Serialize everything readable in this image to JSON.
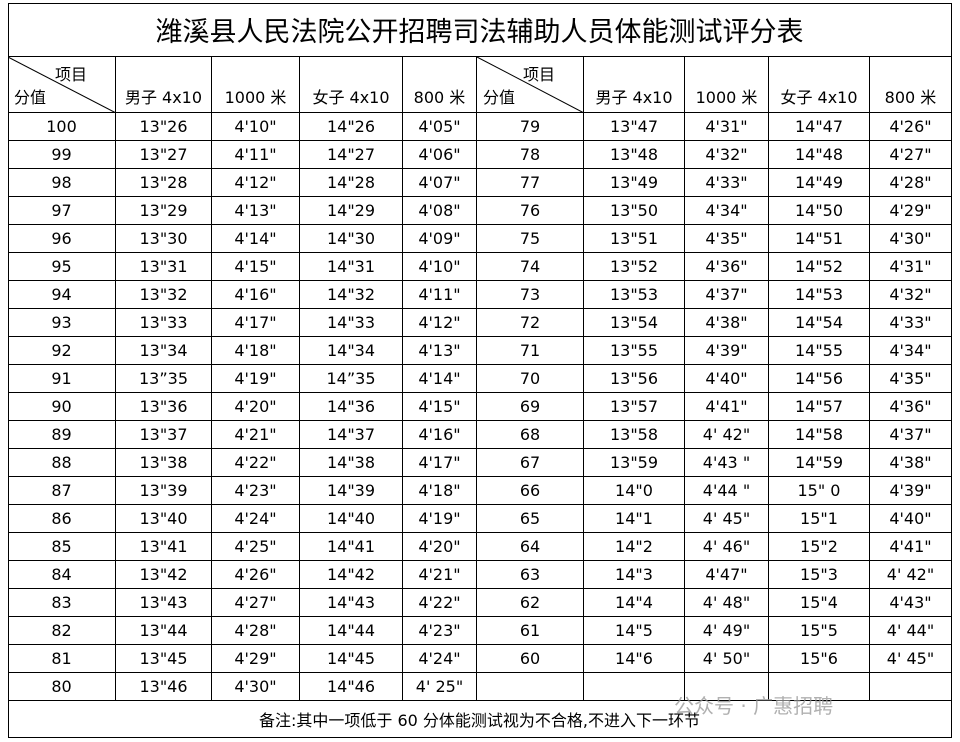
{
  "title": "潍溪县人民法院公开招聘司法辅助人员体能测试评分表",
  "header": {
    "item": "项目",
    "score": "分值",
    "columns": [
      "男子 4x10",
      "1000 米",
      "女子 4x10",
      "800 米"
    ]
  },
  "left_rows": [
    [
      "100",
      "13\"26",
      "4'10\"",
      "14\"26",
      "4'05\""
    ],
    [
      "99",
      "13\"27",
      "4'11\"",
      "14\"27",
      "4'06\""
    ],
    [
      "98",
      "13\"28",
      "4'12\"",
      "14\"28",
      "4'07\""
    ],
    [
      "97",
      "13\"29",
      "4'13\"",
      "14\"29",
      "4'08\""
    ],
    [
      "96",
      "13\"30",
      "4'14\"",
      "14\"30",
      "4'09\""
    ],
    [
      "95",
      "13\"31",
      "4'15\"",
      "14\"31",
      "4'10\""
    ],
    [
      "94",
      "13\"32",
      "4'16\"",
      "14\"32",
      "4'11\""
    ],
    [
      "93",
      "13\"33",
      "4'17\"",
      "14\"33",
      "4'12\""
    ],
    [
      "92",
      "13\"34",
      "4'18\"",
      "14\"34",
      "4'13\""
    ],
    [
      "91",
      "13”35",
      "4'19\"",
      "14”35",
      "4'14\""
    ],
    [
      "90",
      "13\"36",
      "4'20\"",
      "14\"36",
      "4'15\""
    ],
    [
      "89",
      "13\"37",
      "4'21\"",
      "14\"37",
      "4'16\""
    ],
    [
      "88",
      "13\"38",
      "4'22\"",
      "14\"38",
      "4'17\""
    ],
    [
      "87",
      "13\"39",
      "4'23\"",
      "14\"39",
      "4'18\""
    ],
    [
      "86",
      "13\"40",
      "4'24\"",
      "14\"40",
      "4'19\""
    ],
    [
      "85",
      "13\"41",
      "4'25\"",
      "14\"41",
      "4'20\""
    ],
    [
      "84",
      "13\"42",
      "4'26\"",
      "14\"42",
      "4'21\""
    ],
    [
      "83",
      "13\"43",
      "4'27\"",
      "14\"43",
      "4'22\""
    ],
    [
      "82",
      "13\"44",
      "4'28\"",
      "14\"44",
      "4'23\""
    ],
    [
      "81",
      "13\"45",
      "4'29\"",
      "14\"45",
      "4'24\""
    ],
    [
      "80",
      "13\"46",
      "4'30\"",
      "14\"46",
      "4' 25\""
    ]
  ],
  "right_rows": [
    [
      "79",
      "13\"47",
      "4'31\"",
      "14\"47",
      "4'26\""
    ],
    [
      "78",
      "13\"48",
      "4'32\"",
      "14\"48",
      "4'27\""
    ],
    [
      "77",
      "13\"49",
      "4'33\"",
      "14\"49",
      "4'28\""
    ],
    [
      "76",
      "13\"50",
      "4'34\"",
      "14\"50",
      "4'29\""
    ],
    [
      "75",
      "13\"51",
      "4'35\"",
      "14\"51",
      "4'30\""
    ],
    [
      "74",
      "13\"52",
      "4'36\"",
      "14\"52",
      "4'31\""
    ],
    [
      "73",
      "13\"53",
      "4'37\"",
      "14\"53",
      "4'32\""
    ],
    [
      "72",
      "13\"54",
      "4'38\"",
      "14\"54",
      "4'33\""
    ],
    [
      "71",
      "13\"55",
      "4'39\"",
      "14\"55",
      "4'34\""
    ],
    [
      "70",
      "13\"56",
      "4'40\"",
      "14\"56",
      "4'35\""
    ],
    [
      "69",
      "13\"57",
      "4'41\"",
      "14\"57",
      "4'36\""
    ],
    [
      "68",
      "13\"58",
      "4' 42\"",
      "14\"58",
      "4'37\""
    ],
    [
      "67",
      "13\"59",
      "4'43 \"",
      "14\"59",
      "4'38\""
    ],
    [
      "66",
      "14\"0",
      "4'44 \"",
      "15\" 0",
      "4'39\""
    ],
    [
      "65",
      "14\"1",
      "4' 45\"",
      "15\"1",
      "4'40\""
    ],
    [
      "64",
      "14\"2",
      "4' 46\"",
      "15\"2",
      "4'41\""
    ],
    [
      "63",
      "14\"3",
      "4'47\"",
      "15\"3",
      "4' 42\""
    ],
    [
      "62",
      "14\"4",
      "4' 48\"",
      "15\"4",
      "4'43\""
    ],
    [
      "61",
      "14\"5",
      "4' 49\"",
      "15\"5",
      "4' 44\""
    ],
    [
      "60",
      "14\"6",
      "4' 50\"",
      "15\"6",
      "4' 45\""
    ]
  ],
  "note": "备注:其中一项低于 60 分体能测试视为不合格,不进入下一环节",
  "watermark": "公众号 · 广惠招聘"
}
